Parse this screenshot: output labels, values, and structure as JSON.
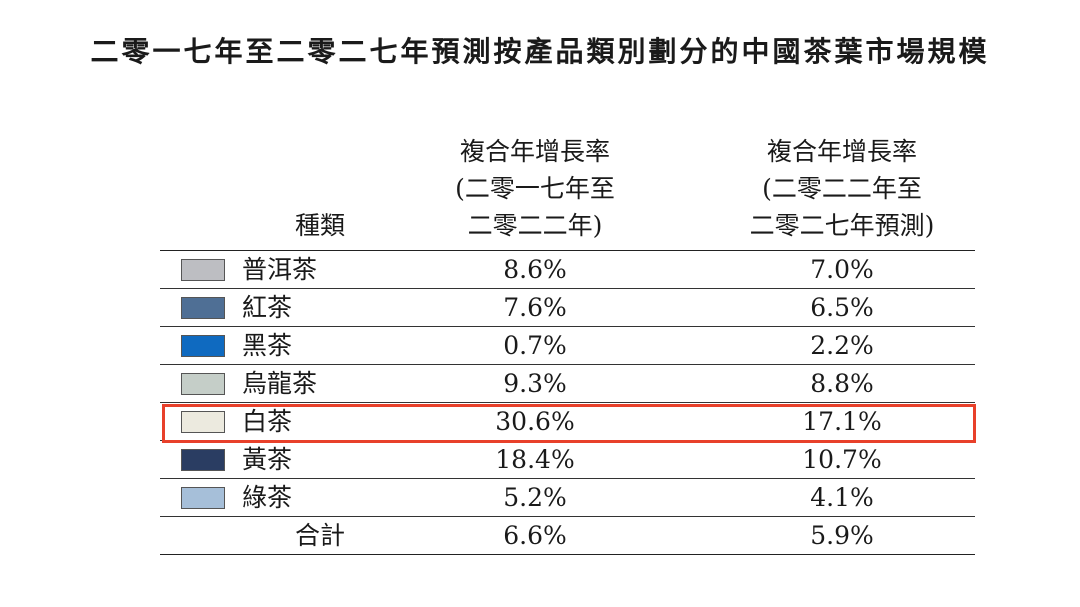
{
  "title": "二零一七年至二零二七年預測按產品類別劃分的中國茶葉市場規模",
  "header": {
    "category": "種類",
    "col1": [
      "複合年增長率",
      "(二零一七年至",
      "二零二二年)"
    ],
    "col2": [
      "複合年增長率",
      "(二零二二年至",
      "二零二七年預測)"
    ]
  },
  "rows": [
    {
      "name": "普洱茶",
      "color": "#bdbec2",
      "cagr_2017_2022": "8.6%",
      "cagr_2022_2027": "7.0%"
    },
    {
      "name": "紅茶",
      "color": "#4f6f95",
      "cagr_2017_2022": "7.6%",
      "cagr_2022_2027": "6.5%"
    },
    {
      "name": "黑茶",
      "color": "#0f6ac0",
      "cagr_2017_2022": "0.7%",
      "cagr_2022_2027": "2.2%"
    },
    {
      "name": "烏龍茶",
      "color": "#c5cec8",
      "cagr_2017_2022": "9.3%",
      "cagr_2022_2027": "8.8%"
    },
    {
      "name": "白茶",
      "color": "#eceadf",
      "cagr_2017_2022": "30.6%",
      "cagr_2022_2027": "17.1%"
    },
    {
      "name": "黃茶",
      "color": "#2a3d62",
      "cagr_2017_2022": "18.4%",
      "cagr_2022_2027": "10.7%"
    },
    {
      "name": "綠茶",
      "color": "#a6bfd9",
      "cagr_2017_2022": "5.2%",
      "cagr_2022_2027": "4.1%"
    }
  ],
  "total": {
    "name": "合計",
    "cagr_2017_2022": "6.6%",
    "cagr_2022_2027": "5.9%"
  },
  "highlight": {
    "row": "白茶",
    "color": "#e8402a"
  }
}
